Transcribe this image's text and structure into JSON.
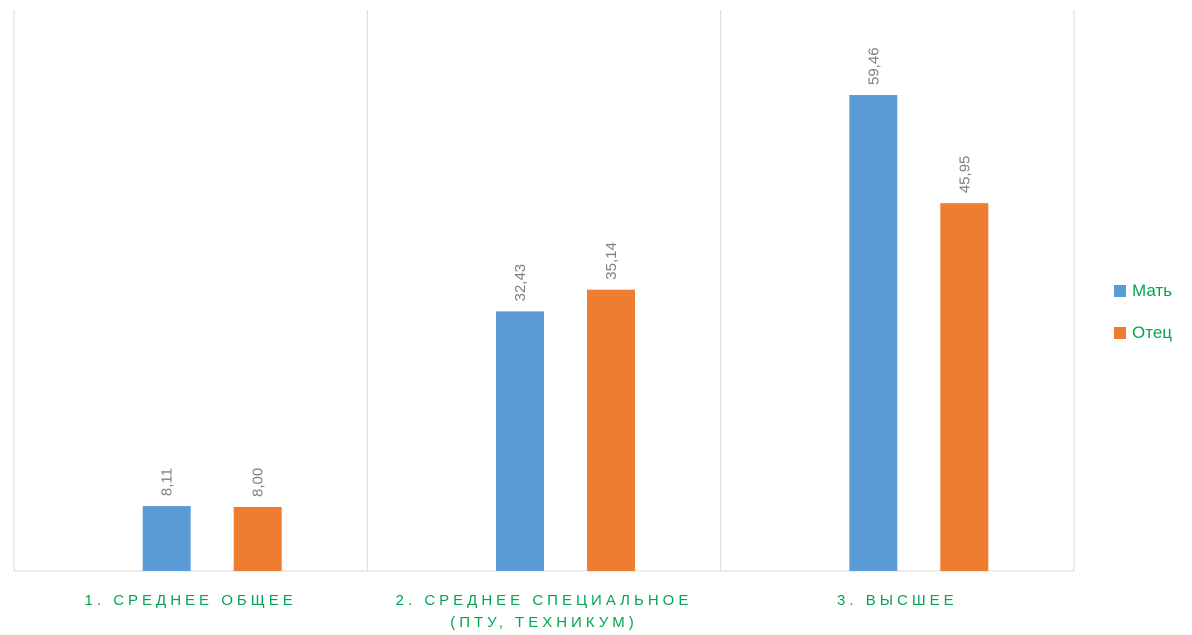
{
  "chart_data": {
    "type": "bar",
    "categories": [
      "1. СРЕДНЕЕ ОБЩЕЕ",
      "2. СРЕДНЕЕ СПЕЦИАЛЬНОЕ\n(ПТУ, ТЕХНИКУМ)",
      "3. ВЫСШЕЕ"
    ],
    "series": [
      {
        "name": "Мать",
        "values": [
          8.11,
          32.43,
          59.46
        ],
        "labels": [
          "8,11",
          "32,43",
          "59,46"
        ],
        "color": "#5B9BD5"
      },
      {
        "name": "Отец",
        "values": [
          8.0,
          35.14,
          45.95
        ],
        "labels": [
          "8,00",
          "35,14",
          "45,95"
        ],
        "color": "#ED7D31"
      }
    ],
    "ylim": [
      0,
      70
    ],
    "legend_position": "right",
    "category_label_color": "#00A651",
    "data_label_color": "#7F7F7F",
    "grid": "vertical category separators"
  }
}
